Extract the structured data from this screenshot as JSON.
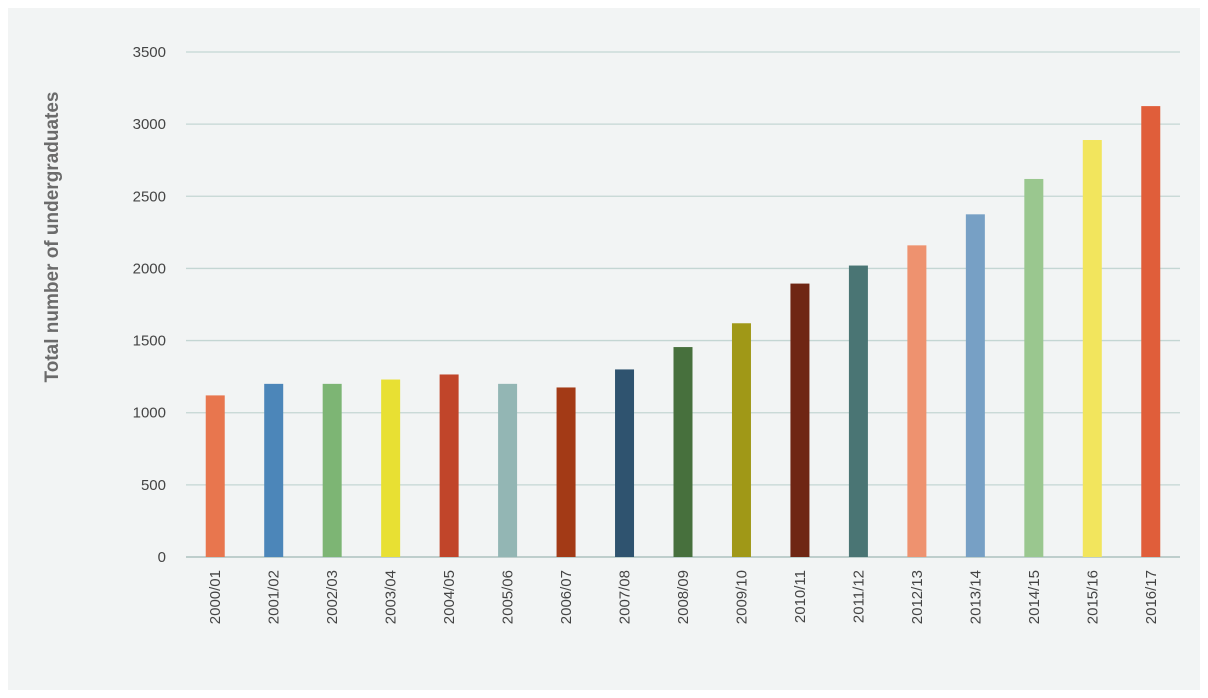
{
  "chart_data": {
    "type": "bar",
    "title": "",
    "xlabel": "",
    "ylabel": "Total number of undergraduates",
    "ylim": [
      0,
      3500
    ],
    "yticks": [
      0,
      500,
      1000,
      1500,
      2000,
      2500,
      3000,
      3500
    ],
    "grid": true,
    "categories": [
      "2000/01",
      "2001/02",
      "2002/03",
      "2003/04",
      "2004/05",
      "2005/06",
      "2006/07",
      "2007/08",
      "2008/09",
      "2009/10",
      "2010/11",
      "2011/12",
      "2012/13",
      "2013/14",
      "2014/15",
      "2015/16",
      "2016/17"
    ],
    "values": [
      1120,
      1200,
      1200,
      1230,
      1265,
      1200,
      1175,
      1300,
      1455,
      1620,
      1895,
      2020,
      2160,
      2375,
      2620,
      2890,
      3125
    ],
    "colors": [
      "#e8764e",
      "#4c86b9",
      "#7db574",
      "#e8e033",
      "#c1452a",
      "#93b6b4",
      "#a33a16",
      "#2f536f",
      "#47703d",
      "#a09817",
      "#6f2614",
      "#4a7574",
      "#ee926f",
      "#77a0c5",
      "#9ac78f",
      "#f2e55d",
      "#e05e3a"
    ]
  }
}
